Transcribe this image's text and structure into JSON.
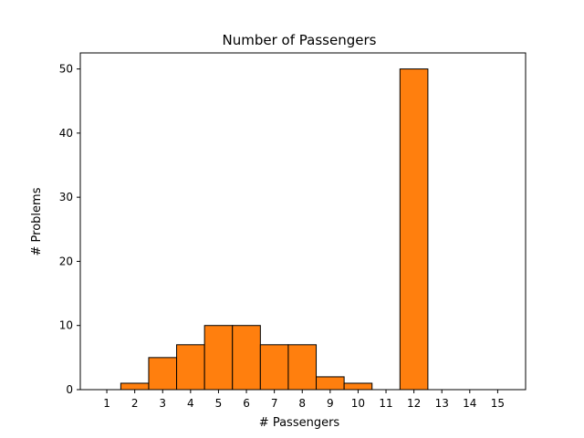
{
  "chart_data": {
    "type": "bar",
    "title": "Number of Passengers",
    "xlabel": "# Passengers",
    "ylabel": "# Problems",
    "categories": [
      "1",
      "2",
      "3",
      "4",
      "5",
      "6",
      "7",
      "8",
      "9",
      "10",
      "11",
      "12",
      "13",
      "14",
      "15"
    ],
    "values": [
      0,
      1,
      5,
      7,
      10,
      10,
      7,
      7,
      2,
      1,
      0,
      50,
      0,
      0,
      0
    ],
    "xlim": [
      0.05,
      16.0
    ],
    "ylim": [
      0,
      52.5
    ],
    "yticks": [
      0,
      10,
      20,
      30,
      40,
      50
    ],
    "grid": false,
    "bar_color": "#ff7f0e",
    "edge_color": "#000000"
  }
}
